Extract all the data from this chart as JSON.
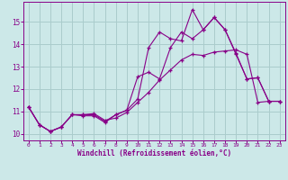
{
  "xlabel": "Windchill (Refroidissement éolien,°C)",
  "background_color": "#cce8e8",
  "grid_color": "#aacccc",
  "line_color": "#880088",
  "xlim": [
    -0.5,
    23.5
  ],
  "ylim": [
    9.7,
    15.9
  ],
  "yticks": [
    10,
    11,
    12,
    13,
    14,
    15
  ],
  "xticks": [
    0,
    1,
    2,
    3,
    4,
    5,
    6,
    7,
    8,
    9,
    10,
    11,
    12,
    13,
    14,
    15,
    16,
    17,
    18,
    19,
    20,
    21,
    22,
    23
  ],
  "series1_x": [
    0,
    1,
    2,
    3,
    4,
    5,
    6,
    7,
    8,
    9,
    10,
    11,
    12,
    13,
    14,
    15,
    16,
    17,
    18,
    19,
    20,
    21,
    22,
    23
  ],
  "series1_y": [
    11.2,
    10.4,
    10.1,
    10.3,
    10.85,
    10.85,
    10.9,
    10.6,
    10.7,
    10.95,
    11.4,
    11.85,
    12.4,
    12.85,
    13.3,
    13.55,
    13.5,
    13.65,
    13.7,
    13.75,
    13.55,
    11.4,
    11.45,
    11.45
  ],
  "series2_x": [
    0,
    1,
    2,
    3,
    4,
    5,
    6,
    7,
    8,
    9,
    10,
    11,
    12,
    13,
    14,
    15,
    16,
    17,
    18,
    19,
    20,
    21,
    22,
    23
  ],
  "series2_y": [
    11.2,
    10.4,
    10.1,
    10.3,
    10.85,
    10.85,
    10.85,
    10.55,
    10.85,
    11.05,
    11.55,
    13.85,
    14.55,
    14.25,
    14.15,
    15.55,
    14.65,
    15.2,
    14.65,
    13.6,
    12.45,
    12.5,
    11.45,
    11.45
  ],
  "series3_x": [
    0,
    1,
    2,
    3,
    4,
    5,
    6,
    7,
    8,
    9,
    10,
    11,
    12,
    13,
    14,
    15,
    16,
    17,
    18,
    19,
    20,
    21,
    22,
    23
  ],
  "series3_y": [
    11.2,
    10.4,
    10.1,
    10.3,
    10.85,
    10.8,
    10.8,
    10.5,
    10.85,
    11.05,
    12.55,
    12.75,
    12.45,
    13.85,
    14.55,
    14.25,
    14.65,
    15.2,
    14.65,
    13.55,
    12.45,
    12.5,
    11.45,
    11.45
  ]
}
